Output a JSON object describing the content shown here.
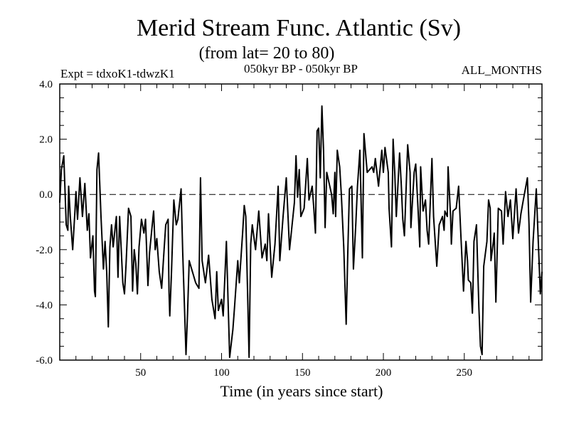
{
  "chart_data": {
    "type": "line",
    "title": "Merid Stream Func. Atlantic (Sv)",
    "subtitle": "(from lat= 20 to 80)",
    "annotations": {
      "left": "Expt = tdxoK1-tdwzK1",
      "center": "050kyr BP - 050kyr BP",
      "right": "ALL_MONTHS"
    },
    "xlabel": "Time (in years since start)",
    "ylabel": "",
    "xlim": [
      0,
      298
    ],
    "ylim": [
      -6.0,
      4.0
    ],
    "x_ticks": [
      50,
      100,
      150,
      200,
      250
    ],
    "x_tick_labels": [
      "50",
      "100",
      "150",
      "200",
      "250"
    ],
    "y_ticks": [
      4.0,
      2.0,
      0.0,
      -2.0,
      -4.0,
      -6.0
    ],
    "y_tick_labels": [
      "4.0",
      "2.0",
      "0.0",
      "-2.0",
      "-4.0",
      "-6.0"
    ],
    "reference_line": 0.0,
    "grid": false,
    "series": [
      {
        "name": "Merid Stream Func",
        "color": "#000000",
        "x": [
          0,
          1,
          2.5,
          4,
          5,
          5.5,
          6.5,
          8,
          9.5,
          10,
          11,
          12.5,
          14,
          15.5,
          17,
          18,
          19,
          20.5,
          21.5,
          22,
          23,
          24,
          25.5,
          27,
          28,
          29,
          30,
          31,
          32,
          33,
          35,
          36,
          37,
          39,
          40,
          41,
          42.5,
          44,
          45,
          46,
          47,
          48,
          49,
          50.5,
          52,
          53,
          54.5,
          55.5,
          57,
          58,
          59,
          60,
          61.5,
          63,
          64.5,
          65.5,
          67,
          67.5,
          68,
          69,
          70.5,
          72,
          73,
          75,
          76,
          78,
          79,
          80,
          81,
          84,
          86,
          87,
          88,
          90,
          92,
          94,
          96,
          97,
          98,
          100,
          101,
          103,
          105,
          107,
          108,
          110,
          111,
          113,
          114,
          115,
          117,
          118,
          119,
          121,
          123,
          125,
          127,
          128,
          129,
          131,
          133,
          135,
          136,
          138,
          140,
          142,
          145,
          146,
          147,
          148,
          149,
          151,
          153,
          154,
          156,
          157,
          158,
          159,
          160,
          161,
          162,
          163,
          164,
          165,
          168,
          169,
          170,
          170.5,
          171.5,
          173,
          174,
          175.5,
          177,
          178,
          179,
          180.5,
          181.5,
          183,
          184,
          185.5,
          187,
          188,
          190,
          193,
          194,
          195,
          197,
          199,
          200,
          201,
          203,
          203.5,
          205,
          206,
          207,
          208,
          210,
          211,
          212,
          213,
          215,
          216.5,
          217,
          219,
          220,
          221.5,
          222.5,
          223,
          224.5,
          226,
          227,
          228,
          230,
          231,
          233,
          234.5,
          236.5,
          237.5,
          238,
          239.5,
          240,
          241.5,
          242,
          243,
          245,
          246.5,
          248,
          249.5,
          251,
          252,
          252.5,
          254,
          255,
          256,
          257.5,
          259,
          260,
          261,
          262,
          264,
          265,
          266,
          266.5,
          268,
          268.5,
          269.5,
          271,
          273,
          274,
          275.5,
          277,
          278.5,
          280,
          282,
          283.5,
          285,
          286.5,
          289,
          290,
          291,
          292.5,
          294.5,
          296,
          297,
          298
        ],
        "y": [
          -0.3,
          0.9,
          1.4,
          -1.1,
          -1.3,
          0.3,
          -0.8,
          -2.0,
          -0.5,
          0.1,
          -0.9,
          0.6,
          -0.8,
          0.4,
          -1.3,
          -0.7,
          -2.3,
          -1.5,
          -3.5,
          -3.7,
          0.9,
          1.5,
          -0.8,
          -2.7,
          -1.7,
          -2.8,
          -4.8,
          -1.9,
          -1.1,
          -1.9,
          -0.8,
          -3.0,
          -0.8,
          -3.2,
          -3.6,
          -2.5,
          -0.5,
          -0.8,
          -3.5,
          -2.0,
          -2.5,
          -3.6,
          -1.9,
          -0.9,
          -1.4,
          -0.9,
          -3.3,
          -2.1,
          -1.2,
          -0.6,
          -2.0,
          -1.6,
          -2.8,
          -3.4,
          -2.0,
          -1.1,
          -0.9,
          -3.5,
          -4.4,
          -2.9,
          -0.2,
          -1.1,
          -0.9,
          0.2,
          -2.1,
          -5.8,
          -4.3,
          -2.4,
          -2.6,
          -3.2,
          -3.4,
          0.6,
          -2.4,
          -3.2,
          -2.2,
          -3.8,
          -4.5,
          -2.8,
          -4.2,
          -3.8,
          -4.4,
          -1.7,
          -5.9,
          -4.9,
          -4.1,
          -2.4,
          -3.2,
          -1.4,
          -0.4,
          -0.8,
          -5.9,
          -1.8,
          -1.1,
          -2.0,
          -0.6,
          -2.3,
          -1.8,
          -2.4,
          -0.7,
          -3.0,
          -1.8,
          0.3,
          -2.4,
          -0.8,
          0.6,
          -2.0,
          -0.3,
          1.4,
          -0.1,
          0.9,
          -0.8,
          -0.5,
          1.3,
          -0.2,
          0.3,
          -0.5,
          -1.4,
          2.3,
          2.4,
          0.6,
          3.2,
          1.6,
          -1.2,
          0.8,
          0.0,
          -0.7,
          0.8,
          -0.8,
          1.6,
          1.0,
          0.0,
          -1.9,
          -4.7,
          -2.1,
          0.2,
          0.3,
          -2.7,
          -1.0,
          0.3,
          1.6,
          -2.3,
          2.2,
          0.8,
          1.0,
          0.8,
          1.3,
          0.3,
          1.6,
          0.8,
          1.7,
          0.8,
          -0.5,
          -1.9,
          2.0,
          0.8,
          -0.8,
          1.5,
          0.4,
          -0.9,
          -1.5,
          1.8,
          0.8,
          -1.2,
          0.8,
          1.1,
          -0.6,
          -1.9,
          1.0,
          -0.6,
          -0.2,
          -1.3,
          -1.8,
          1.3,
          -0.8,
          -2.6,
          -1.1,
          -0.8,
          -1.3,
          -0.6,
          -0.8,
          1.0,
          -0.8,
          -1.8,
          -0.6,
          -0.5,
          0.3,
          -1.6,
          -3.5,
          -1.7,
          -2.4,
          -3.1,
          -3.2,
          -4.3,
          -1.7,
          -1.1,
          -4.1,
          -5.5,
          -5.8,
          -2.6,
          -1.7,
          -0.2,
          -0.5,
          -2.4,
          -1.7,
          -1.4,
          -3.9,
          -0.5,
          -0.6,
          -1.8,
          0.1,
          -0.8,
          -0.2,
          -1.6,
          0.2,
          -1.4,
          -0.7,
          -0.2,
          0.6,
          -1.1,
          -3.9,
          -1.7,
          0.2,
          -2.1,
          -3.6,
          -2.8
        ]
      }
    ]
  }
}
